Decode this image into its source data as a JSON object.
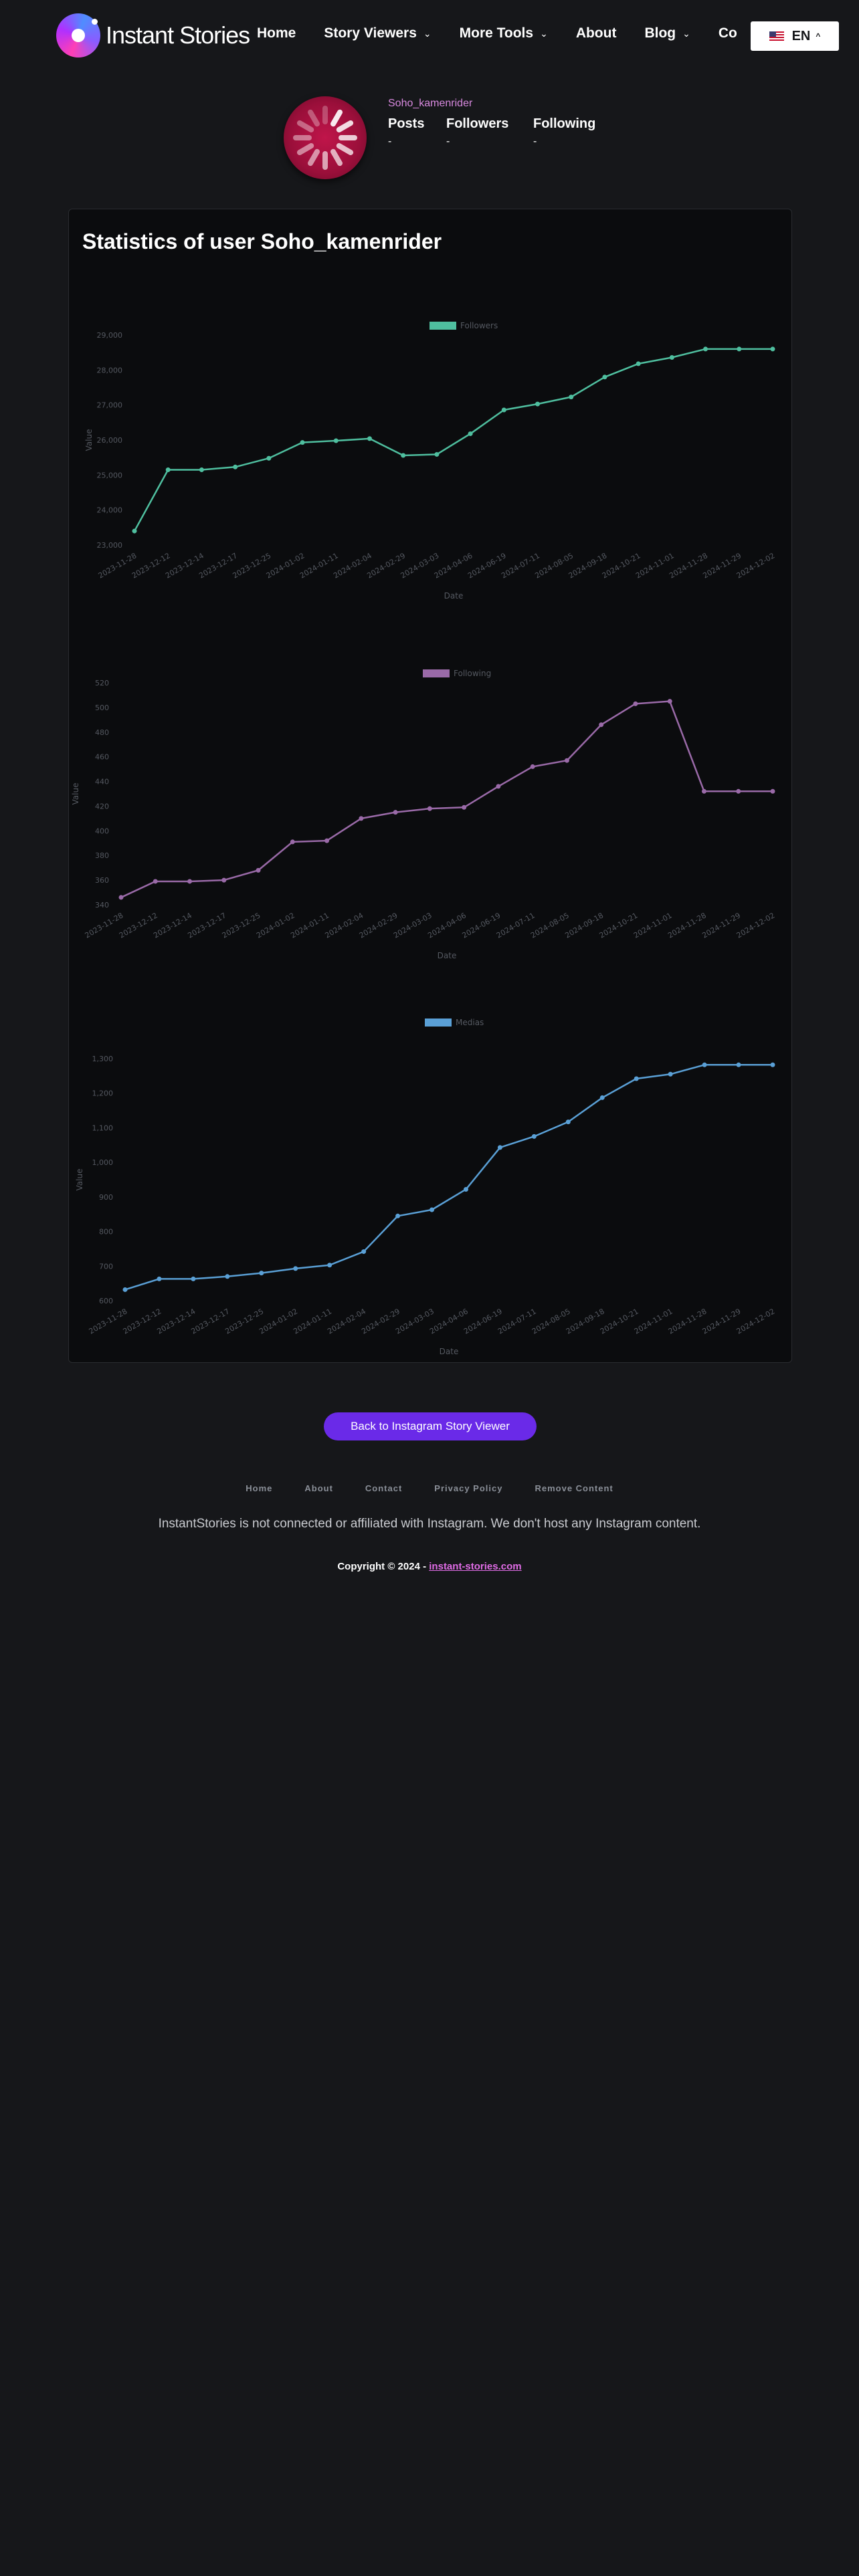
{
  "brand": {
    "name": "Instant Stories"
  },
  "nav": [
    {
      "label": "Home",
      "has_dropdown": false
    },
    {
      "label": "Story Viewers",
      "has_dropdown": true
    },
    {
      "label": "More Tools",
      "has_dropdown": true
    },
    {
      "label": "About",
      "has_dropdown": false
    },
    {
      "label": "Blog",
      "has_dropdown": true
    },
    {
      "label": "Co",
      "has_dropdown": false
    }
  ],
  "language": {
    "code": "EN",
    "icon": "us-flag-icon"
  },
  "profile": {
    "username": "Soho_kamenrider",
    "stats": [
      {
        "label": "Posts",
        "value": "-"
      },
      {
        "label": "Followers",
        "value": "-"
      },
      {
        "label": "Following",
        "value": "-"
      }
    ]
  },
  "stats_title": "Statistics of user Soho_kamenrider",
  "chart_data": [
    {
      "type": "line",
      "series": [
        {
          "name": "Followers",
          "color": "#4fbf9f",
          "values": [
            23400,
            25150,
            25150,
            25230,
            25480,
            25930,
            25980,
            26040,
            25560,
            25590,
            26180,
            26860,
            27030,
            27230,
            27800,
            28180,
            28360,
            28600,
            28600,
            28600
          ]
        }
      ],
      "x": [
        "2023-11-28",
        "2023-12-12",
        "2023-12-14",
        "2023-12-17",
        "2023-12-25",
        "2024-01-02",
        "2024-01-11",
        "2024-02-04",
        "2024-02-29",
        "2024-03-03",
        "2024-04-06",
        "2024-06-19",
        "2024-07-11",
        "2024-08-05",
        "2024-09-18",
        "2024-10-21",
        "2024-11-01",
        "2024-11-28",
        "2024-11-29",
        "2024-12-02"
      ],
      "xlabel": "Date",
      "ylabel": "Value",
      "yticks": [
        23000,
        24000,
        25000,
        26000,
        27000,
        28000,
        29000
      ],
      "ylim": [
        23000,
        29000
      ],
      "legend": "top-center"
    },
    {
      "type": "line",
      "series": [
        {
          "name": "Following",
          "color": "#9a6aa8",
          "values": [
            346,
            359,
            359,
            360,
            368,
            391,
            392,
            410,
            415,
            418,
            419,
            436,
            452,
            457,
            486,
            503,
            505,
            432,
            432,
            432
          ]
        }
      ],
      "x": [
        "2023-11-28",
        "2023-12-12",
        "2023-12-14",
        "2023-12-17",
        "2023-12-25",
        "2024-01-02",
        "2024-01-11",
        "2024-02-04",
        "2024-02-29",
        "2024-03-03",
        "2024-04-06",
        "2024-06-19",
        "2024-07-11",
        "2024-08-05",
        "2024-09-18",
        "2024-10-21",
        "2024-11-01",
        "2024-11-28",
        "2024-11-29",
        "2024-12-02"
      ],
      "xlabel": "Date",
      "ylabel": "Value",
      "yticks": [
        340,
        360,
        380,
        400,
        420,
        440,
        460,
        480,
        500,
        520
      ],
      "ylim": [
        340,
        520
      ],
      "legend": "top-center"
    },
    {
      "type": "line",
      "series": [
        {
          "name": "Medias",
          "color": "#5aa0d6",
          "values": [
            632,
            663,
            663,
            670,
            680,
            693,
            703,
            742,
            845,
            863,
            922,
            1043,
            1075,
            1117,
            1187,
            1242,
            1255,
            1282,
            1282,
            1282
          ]
        }
      ],
      "x": [
        "2023-11-28",
        "2023-12-12",
        "2023-12-14",
        "2023-12-17",
        "2023-12-25",
        "2024-01-02",
        "2024-01-11",
        "2024-02-04",
        "2024-02-29",
        "2024-03-03",
        "2024-04-06",
        "2024-06-19",
        "2024-07-11",
        "2024-08-05",
        "2024-09-18",
        "2024-10-21",
        "2024-11-01",
        "2024-11-28",
        "2024-11-29",
        "2024-12-02"
      ],
      "xlabel": "Date",
      "ylabel": "Value",
      "yticks": [
        600,
        700,
        800,
        900,
        1000,
        1100,
        1200,
        1300
      ],
      "ylim": [
        600,
        1300
      ],
      "legend": "top-center"
    }
  ],
  "back_button": "Back to Instagram Story Viewer",
  "footer": {
    "links": [
      "Home",
      "About",
      "Contact",
      "Privacy Policy",
      "Remove Content"
    ],
    "disclaimer": "InstantStories is not connected or affiliated with Instagram. We don't host any Instagram content.",
    "copyright_prefix": "Copyright © 2024 -",
    "copyright_link": "instant-stories.com"
  }
}
